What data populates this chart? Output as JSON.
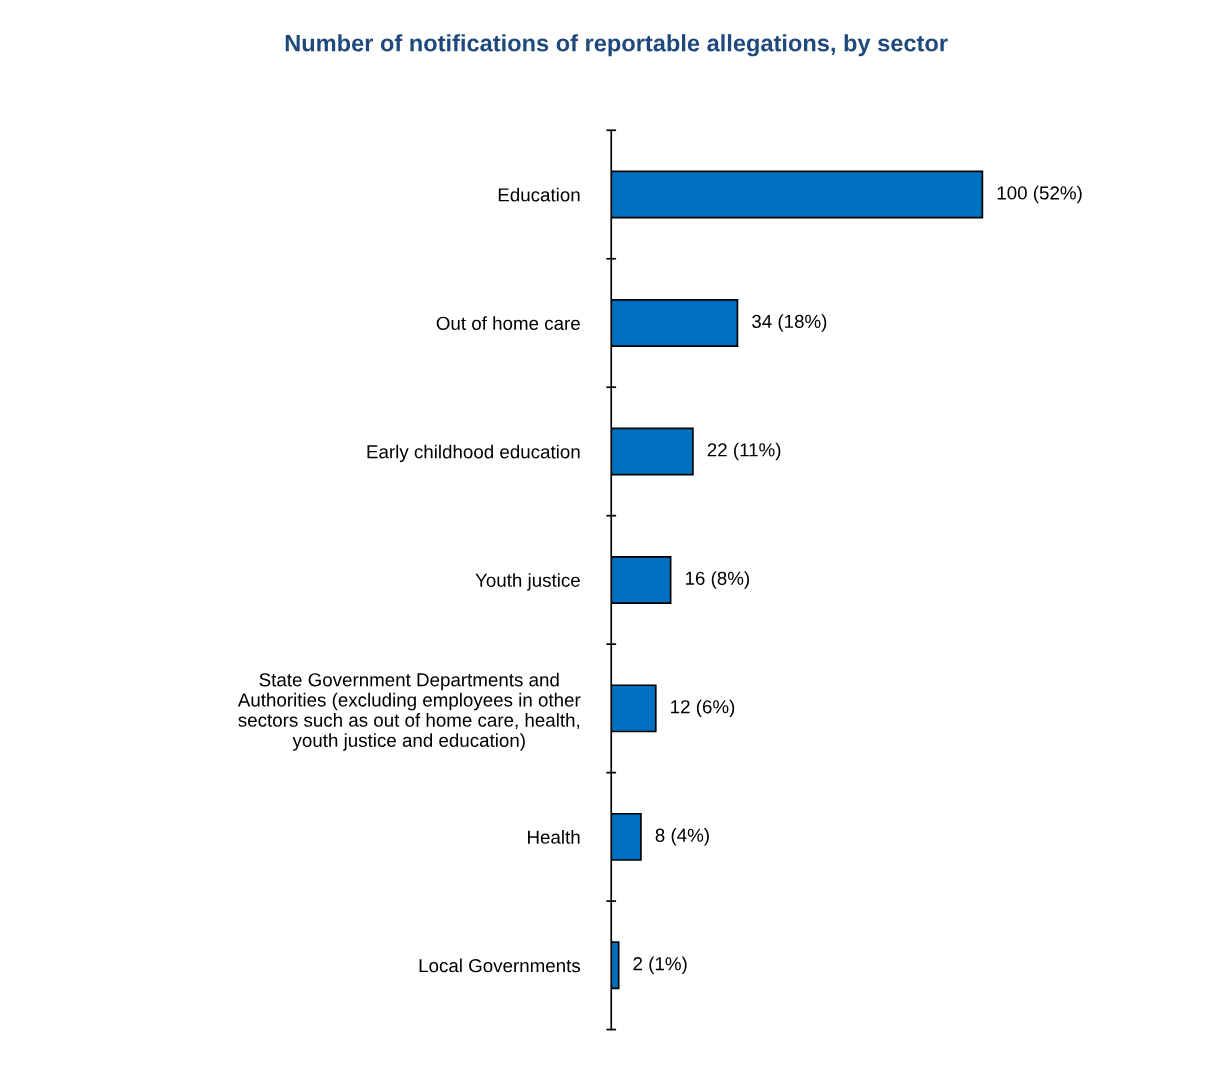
{
  "chart_data": {
    "type": "bar",
    "orientation": "horizontal",
    "title": "Number of notifications of reportable allegations, by sector",
    "categories": [
      "Education",
      "Out of home care",
      "Early childhood education",
      "Youth justice",
      "State Government Departments and\nAuthorities (excluding employees in other\nsectors such as out of home care, health,\nyouth justice and education)",
      "Health",
      "Local Governments"
    ],
    "values": [
      100,
      34,
      22,
      16,
      12,
      8,
      2
    ],
    "value_labels": [
      "100 (52%)",
      "34 (18%)",
      "22 (11%)",
      "16 (8%)",
      "12 (6%)",
      "8 (4%)",
      "2 (1%)"
    ],
    "color": "#0070c0",
    "grid": false,
    "legend": false
  }
}
